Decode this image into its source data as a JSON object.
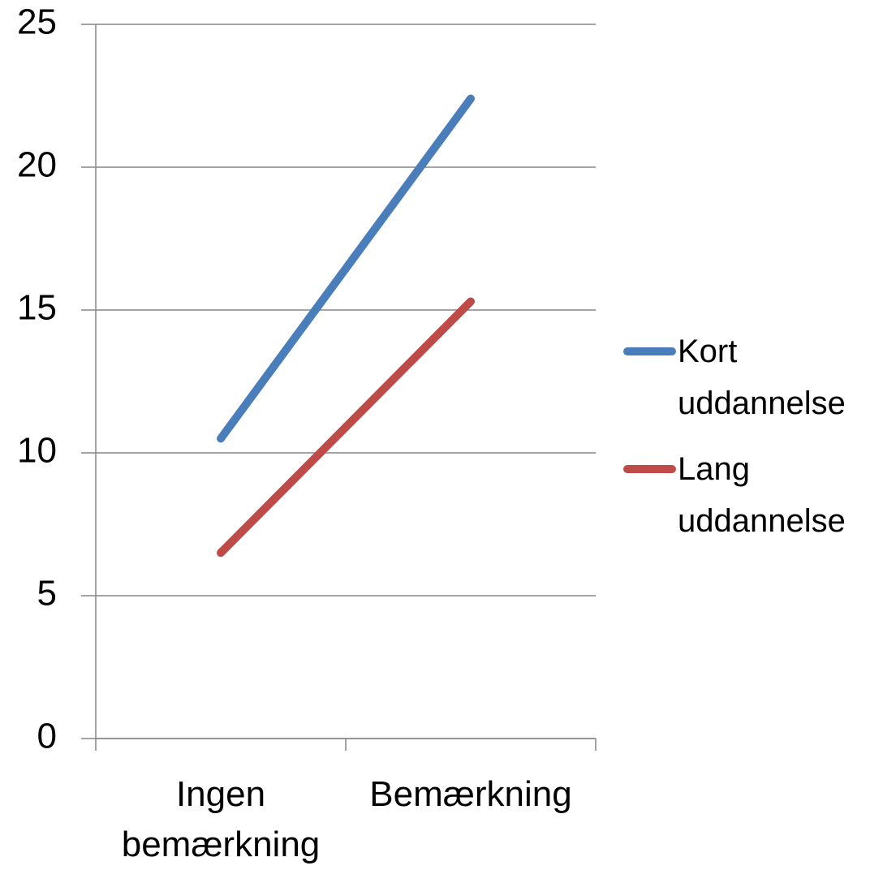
{
  "chart_data": {
    "type": "line",
    "categories": [
      "Ingen bemærkning",
      "Bemærkning"
    ],
    "series": [
      {
        "name": "Kort uddannelse",
        "color": "#4a7ebb",
        "values": [
          10.5,
          22.4
        ]
      },
      {
        "name": "Lang uddannelse",
        "color": "#be4b48",
        "values": [
          6.5,
          15.3
        ]
      }
    ],
    "ylim": [
      0,
      25
    ],
    "yticks": [
      0,
      5,
      10,
      15,
      20,
      25
    ],
    "grid": true,
    "legend": "right"
  }
}
